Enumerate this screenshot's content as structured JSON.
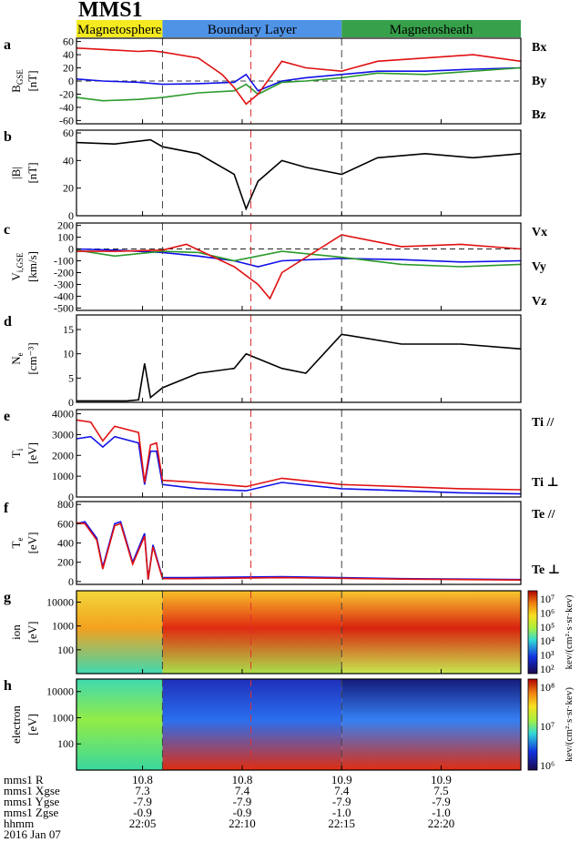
{
  "title": "MMS1",
  "regions": [
    {
      "label": "Magnetosphere",
      "color": "#f4ea1f",
      "text_color": "#c00000",
      "x0": 22.028,
      "x1": 22.1
    },
    {
      "label": "Boundary Layer",
      "color": "#4f93e6",
      "text_color": "#c00000",
      "x0": 22.1,
      "x1": 22.25
    },
    {
      "label": "Magnetosheath",
      "color": "#37a04a",
      "text_color": "#c00000",
      "x0": 22.25,
      "x1": 22.4
    }
  ],
  "time_axis": {
    "min_hours": 22.028,
    "max_hours": 22.4,
    "ticks": [
      22.0833,
      22.1667,
      22.25,
      22.3333
    ]
  },
  "vlines": [
    {
      "t": 22.1,
      "color": "#444444"
    },
    {
      "t": 22.25,
      "color": "#444444"
    },
    {
      "t": 22.174,
      "color": "#e03030"
    }
  ],
  "colors": {
    "blue": "#1010e8",
    "green": "#2c9a2c",
    "red": "#e01010",
    "black": "#000000"
  },
  "chart_data": [
    {
      "panel": "a",
      "type": "line",
      "ylabel_main": "B",
      "ylabel_sub": "GSE",
      "ylabel_unit": "[nT]",
      "ylim": [
        -65,
        65
      ],
      "yticks": [
        {
          "v": 60,
          "l": "60"
        },
        {
          "v": 40,
          "l": "40"
        },
        {
          "v": 20,
          "l": "20"
        },
        {
          "v": 0,
          "l": "0"
        },
        {
          "v": -20,
          "l": "-20"
        },
        {
          "v": -40,
          "l": "-40"
        },
        {
          "v": -60,
          "l": "-60"
        }
      ],
      "zero_line": 0,
      "legend": [
        {
          "name": "Bx",
          "color": "#1010e8"
        },
        {
          "name": "By",
          "color": "#2c9a2c"
        },
        {
          "name": "Bz",
          "color": "#e01010"
        }
      ],
      "series": [
        {
          "name": "Bx",
          "color": "#1010e8",
          "t": [
            22.028,
            22.05,
            22.08,
            22.1,
            22.13,
            22.16,
            22.17,
            22.18,
            22.2,
            22.22,
            22.25,
            22.28,
            22.32,
            22.36,
            22.4
          ],
          "v": [
            3,
            0,
            -2,
            -5,
            -4,
            -2,
            10,
            -15,
            0,
            5,
            10,
            15,
            15,
            18,
            20
          ]
        },
        {
          "name": "By",
          "color": "#2c9a2c",
          "t": [
            22.028,
            22.05,
            22.08,
            22.1,
            22.13,
            22.16,
            22.17,
            22.18,
            22.2,
            22.22,
            22.25,
            22.28,
            22.32,
            22.36,
            22.4
          ],
          "v": [
            -25,
            -30,
            -28,
            -25,
            -18,
            -15,
            -5,
            -20,
            -2,
            0,
            5,
            12,
            10,
            15,
            20
          ]
        },
        {
          "name": "Bz",
          "color": "#e01010",
          "t": [
            22.028,
            22.05,
            22.08,
            22.09,
            22.1,
            22.13,
            22.15,
            22.16,
            22.17,
            22.18,
            22.2,
            22.22,
            22.25,
            22.28,
            22.32,
            22.36,
            22.4
          ],
          "v": [
            50,
            48,
            45,
            46,
            44,
            35,
            10,
            -10,
            -35,
            -20,
            30,
            20,
            15,
            30,
            35,
            40,
            30
          ]
        }
      ]
    },
    {
      "panel": "b",
      "type": "line",
      "ylabel_main": "|B|",
      "ylabel_sub": "",
      "ylabel_unit": "[nT]",
      "ylim": [
        0,
        62
      ],
      "yticks": [
        {
          "v": 60,
          "l": "60"
        },
        {
          "v": 40,
          "l": "40"
        },
        {
          "v": 20,
          "l": "20"
        },
        {
          "v": 0,
          "l": "0"
        }
      ],
      "legend": [],
      "series": [
        {
          "name": "",
          "color": "#000000",
          "t": [
            22.028,
            22.06,
            22.09,
            22.1,
            22.13,
            22.16,
            22.17,
            22.18,
            22.2,
            22.22,
            22.25,
            22.28,
            22.32,
            22.36,
            22.4
          ],
          "v": [
            53,
            52,
            55,
            50,
            45,
            30,
            5,
            25,
            40,
            35,
            30,
            42,
            45,
            42,
            45
          ]
        }
      ]
    },
    {
      "panel": "c",
      "type": "line",
      "ylabel_main": "V",
      "ylabel_sub": "i,GSE",
      "ylabel_unit": "[km/s]",
      "ylim": [
        -520,
        220
      ],
      "yticks": [
        {
          "v": 200,
          "l": "200"
        },
        {
          "v": 100,
          "l": "100"
        },
        {
          "v": 0,
          "l": "0"
        },
        {
          "v": -100,
          "l": "-100"
        },
        {
          "v": -200,
          "l": "-200"
        },
        {
          "v": -300,
          "l": "-300"
        },
        {
          "v": -400,
          "l": "-400"
        },
        {
          "v": -500,
          "l": "-500"
        }
      ],
      "zero_line": 0,
      "legend": [
        {
          "name": "Vx",
          "color": "#1010e8"
        },
        {
          "name": "Vy",
          "color": "#2c9a2c"
        },
        {
          "name": "Vz",
          "color": "#e01010"
        }
      ],
      "series": [
        {
          "name": "Vx",
          "color": "#1010e8",
          "t": [
            22.028,
            22.06,
            22.1,
            22.13,
            22.16,
            22.18,
            22.2,
            22.25,
            22.3,
            22.35,
            22.4
          ],
          "v": [
            0,
            -10,
            -30,
            -60,
            -100,
            -150,
            -100,
            -80,
            -90,
            -110,
            -100
          ]
        },
        {
          "name": "Vy",
          "color": "#2c9a2c",
          "t": [
            22.028,
            22.06,
            22.1,
            22.13,
            22.16,
            22.18,
            22.2,
            22.25,
            22.3,
            22.35,
            22.4
          ],
          "v": [
            -10,
            -60,
            -20,
            -30,
            -100,
            -60,
            -20,
            -70,
            -130,
            -150,
            -130
          ]
        },
        {
          "name": "Vz",
          "color": "#e01010",
          "t": [
            22.028,
            22.06,
            22.1,
            22.12,
            22.16,
            22.18,
            22.19,
            22.2,
            22.25,
            22.3,
            22.35,
            22.4
          ],
          "v": [
            -20,
            -20,
            -10,
            40,
            -150,
            -300,
            -420,
            -200,
            120,
            20,
            40,
            0
          ]
        }
      ]
    },
    {
      "panel": "d",
      "type": "line",
      "ylabel_main": "N",
      "ylabel_sub": "e",
      "ylabel_unit": "[cm⁻³]",
      "ylim": [
        0,
        18
      ],
      "yticks": [
        {
          "v": 15,
          "l": "15"
        },
        {
          "v": 10,
          "l": "10"
        },
        {
          "v": 5,
          "l": "5"
        },
        {
          "v": 0,
          "l": "0"
        }
      ],
      "legend": [],
      "series": [
        {
          "name": "",
          "color": "#000000",
          "t": [
            22.028,
            22.07,
            22.08,
            22.085,
            22.09,
            22.1,
            22.13,
            22.16,
            22.17,
            22.2,
            22.22,
            22.25,
            22.3,
            22.35,
            22.4
          ],
          "v": [
            0.3,
            0.3,
            0.5,
            8,
            1,
            3,
            6,
            7,
            10,
            7,
            6,
            14,
            12,
            12,
            11
          ]
        }
      ]
    },
    {
      "panel": "e",
      "type": "line",
      "ylabel_main": "T",
      "ylabel_sub": "i",
      "ylabel_unit": "[eV]",
      "ylim": [
        0,
        4200
      ],
      "yticks": [
        {
          "v": 4000,
          "l": "4000"
        },
        {
          "v": 3000,
          "l": "3000"
        },
        {
          "v": 2000,
          "l": "2000"
        },
        {
          "v": 1000,
          "l": "1000"
        },
        {
          "v": 0,
          "l": "0"
        }
      ],
      "legend": [
        {
          "name": "Ti //",
          "color": "#1010e8"
        },
        {
          "name": "Ti ⊥",
          "color": "#e01010"
        }
      ],
      "series": [
        {
          "name": "Ti //",
          "color": "#1010e8",
          "t": [
            22.028,
            22.04,
            22.05,
            22.06,
            22.08,
            22.085,
            22.09,
            22.095,
            22.1,
            22.13,
            22.17,
            22.2,
            22.25,
            22.3,
            22.35,
            22.4
          ],
          "v": [
            2800,
            2900,
            2400,
            2900,
            2600,
            600,
            2200,
            2200,
            600,
            400,
            300,
            700,
            400,
            300,
            200,
            150
          ]
        },
        {
          "name": "Ti ⊥",
          "color": "#e01010",
          "t": [
            22.028,
            22.04,
            22.05,
            22.06,
            22.08,
            22.085,
            22.09,
            22.095,
            22.1,
            22.13,
            22.17,
            22.2,
            22.25,
            22.3,
            22.35,
            22.4
          ],
          "v": [
            3700,
            3600,
            2700,
            3400,
            3100,
            700,
            2500,
            2600,
            800,
            700,
            500,
            900,
            600,
            500,
            400,
            350
          ]
        }
      ]
    },
    {
      "panel": "f",
      "type": "line",
      "ylabel_main": "T",
      "ylabel_sub": "e",
      "ylabel_unit": "[eV]",
      "ylim": [
        -30,
        830
      ],
      "yticks": [
        {
          "v": 800,
          "l": "800"
        },
        {
          "v": 600,
          "l": "600"
        },
        {
          "v": 400,
          "l": "400"
        },
        {
          "v": 200,
          "l": "200"
        },
        {
          "v": 0,
          "l": "0"
        }
      ],
      "legend": [
        {
          "name": "Te //",
          "color": "#1010e8"
        },
        {
          "name": "Te ⊥",
          "color": "#e01010"
        }
      ],
      "series": [
        {
          "name": "Te //",
          "color": "#1010e8",
          "t": [
            22.028,
            22.035,
            22.045,
            22.05,
            22.06,
            22.065,
            22.075,
            22.085,
            22.088,
            22.092,
            22.1,
            22.12,
            22.2,
            22.3,
            22.4
          ],
          "v": [
            600,
            620,
            450,
            150,
            600,
            620,
            200,
            500,
            20,
            380,
            40,
            40,
            50,
            30,
            20
          ]
        },
        {
          "name": "Te ⊥",
          "color": "#e01010",
          "t": [
            22.028,
            22.035,
            22.045,
            22.05,
            22.06,
            22.065,
            22.075,
            22.085,
            22.088,
            22.092,
            22.1,
            22.12,
            22.2,
            22.3,
            22.4
          ],
          "v": [
            610,
            600,
            430,
            130,
            580,
            600,
            180,
            470,
            20,
            360,
            30,
            30,
            40,
            25,
            15
          ]
        }
      ]
    },
    {
      "panel": "g",
      "type": "heatmap",
      "ylabel_main": "ion",
      "ylabel_unit": "[eV]",
      "ylim_log": [
        10,
        30000
      ],
      "yticks": [
        {
          "v": 10000,
          "l": "10000"
        },
        {
          "v": 1000,
          "l": "1000"
        },
        {
          "v": 100,
          "l": "100"
        }
      ],
      "colorbar_ticks": [
        "10⁷",
        "10⁶",
        "10⁵",
        "10⁴",
        "10³",
        "10²"
      ],
      "colorbar_label": "kev/(cm²·s·sr·kev)",
      "bands": [
        {
          "t0": 22.028,
          "t1": 22.1,
          "low": "#3fd9b0",
          "mid": "#f3a11f",
          "high": "#f1d83a"
        },
        {
          "t0": 22.1,
          "t1": 22.25,
          "low": "#a9e04a",
          "mid": "#e02a10",
          "high": "#f7c028"
        },
        {
          "t0": 22.25,
          "t1": 22.4,
          "low": "#c8e850",
          "mid": "#d8230e",
          "high": "#f9c830"
        }
      ]
    },
    {
      "panel": "h",
      "type": "heatmap",
      "ylabel_main": "electron",
      "ylabel_unit": "[eV]",
      "ylim_log": [
        10,
        30000
      ],
      "yticks": [
        {
          "v": 10000,
          "l": "10000"
        },
        {
          "v": 1000,
          "l": "1000"
        },
        {
          "v": 100,
          "l": "100"
        }
      ],
      "colorbar_ticks": [
        "10⁸",
        "10⁷",
        "10⁶"
      ],
      "colorbar_label": "kev/(cm²·s·sr·kev)",
      "bands": [
        {
          "t0": 22.028,
          "t1": 22.1,
          "low": "#3ad89e",
          "mid": "#93ec45",
          "high": "#3fd9b0"
        },
        {
          "t0": 22.1,
          "t1": 22.25,
          "low": "#e02d10",
          "mid": "#2a6ff0",
          "high": "#1f2fb8"
        },
        {
          "t0": 22.25,
          "t1": 22.4,
          "low": "#e02d10",
          "mid": "#3580f4",
          "high": "#141b7a"
        }
      ]
    }
  ],
  "footer": {
    "labels": [
      "mms1 R",
      "mms1 Xgse",
      "mms1 Ygse",
      "mms1 Zgse",
      "hhmm",
      "2016 Jan 07"
    ],
    "columns": [
      [
        "10.8",
        "7.3",
        "-7.9",
        "-0.9",
        "22:05"
      ],
      [
        "10.8",
        "7.4",
        "-7.9",
        "-0.9",
        "22:10"
      ],
      [
        "10.9",
        "7.4",
        "-7.9",
        "-1.0",
        "22:15"
      ],
      [
        "10.9",
        "7.5",
        "-7.9",
        "-1.0",
        "22:20"
      ]
    ]
  }
}
